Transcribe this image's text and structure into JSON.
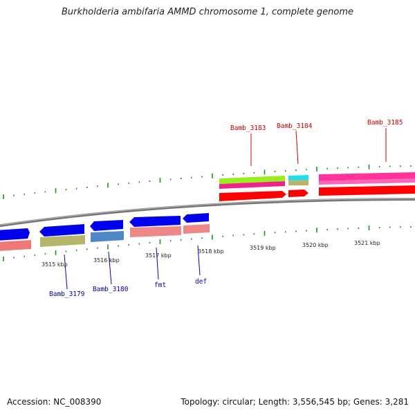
{
  "title": "Burkholderia ambifaria AMMD chromosome 1, complete genome",
  "footer": {
    "accession": "Accession: NC_008390",
    "info": "Topology: circular; Length: 3,556,545 bp; Genes: 3,281"
  },
  "scale_labels": [
    "3515 kbp",
    "3516 kbp",
    "3517 kbp",
    "3518 kbp",
    "3519 kbp",
    "3520 kbp",
    "3521 kbp"
  ],
  "gene_labels": {
    "Bamb_3183": "Bamb_3183",
    "Bamb_3184": "Bamb_3184",
    "Bamb_3185": "Bamb_3185",
    "Bamb_3179": "Bamb_3179",
    "Bamb_3180": "Bamb_3180",
    "fmt": "fmt",
    "def": "def"
  },
  "colors": {
    "cds": "#0000ee",
    "cds_outer": "#ff0000",
    "cog_pink": "#f08080",
    "cog_olive": "#b5b56b",
    "cog_steel": "#4f86c6",
    "cog_green": "#99ff33",
    "cog_cyan": "#22e0f0",
    "cog_magenta": "#ff33aa",
    "backbone": "#888888",
    "ticks": "#228b22"
  }
}
